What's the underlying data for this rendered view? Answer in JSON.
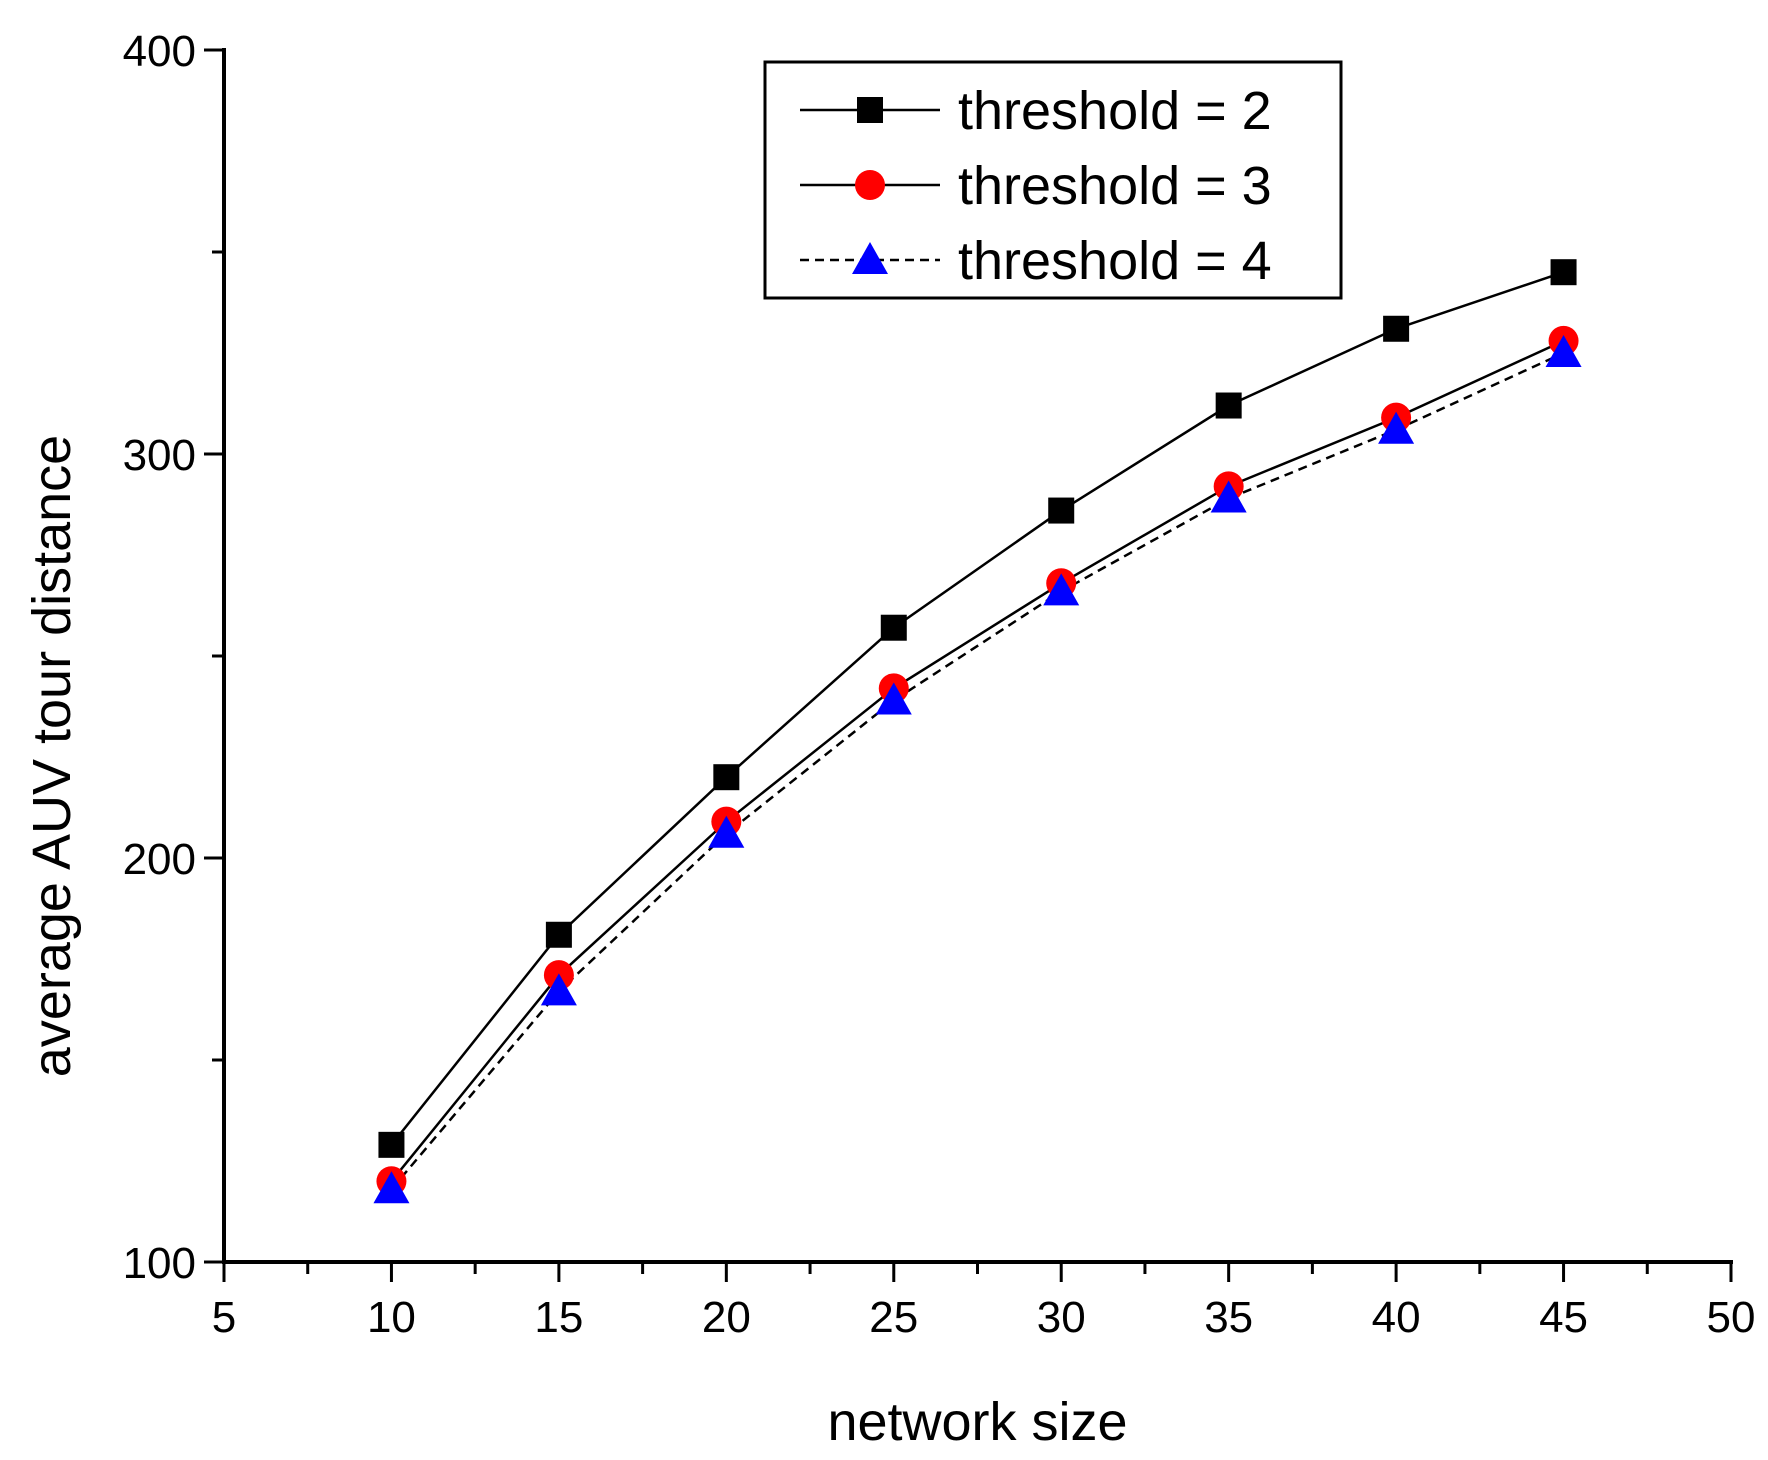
{
  "chart_data": {
    "type": "line",
    "title": "",
    "xlabel": "network size",
    "ylabel": "average AUV tour distance",
    "xlim": [
      5,
      50
    ],
    "ylim": [
      100,
      400
    ],
    "x_ticks": [
      5,
      10,
      15,
      20,
      25,
      30,
      35,
      40,
      45,
      50
    ],
    "x_minor_step": 2.5,
    "y_ticks": [
      100,
      200,
      300,
      400
    ],
    "y_minor_step": 50,
    "x": [
      10,
      15,
      20,
      25,
      30,
      35,
      40,
      45
    ],
    "legend_position": "top-right",
    "series": [
      {
        "name": "threshold = 2",
        "marker": "square",
        "marker_color": "#000000",
        "line_style": "solid",
        "values": [
          129,
          181,
          220,
          257,
          286,
          312,
          331,
          345
        ]
      },
      {
        "name": "threshold = 3",
        "marker": "circle",
        "marker_color": "#ff0000",
        "line_style": "solid",
        "values": [
          120,
          171,
          209,
          242,
          268,
          292,
          309,
          328
        ]
      },
      {
        "name": "threshold = 4",
        "marker": "triangle",
        "marker_color": "#0000ff",
        "line_style": "dashed",
        "values": [
          118,
          167,
          206,
          239,
          266,
          289,
          306,
          325
        ]
      }
    ]
  }
}
